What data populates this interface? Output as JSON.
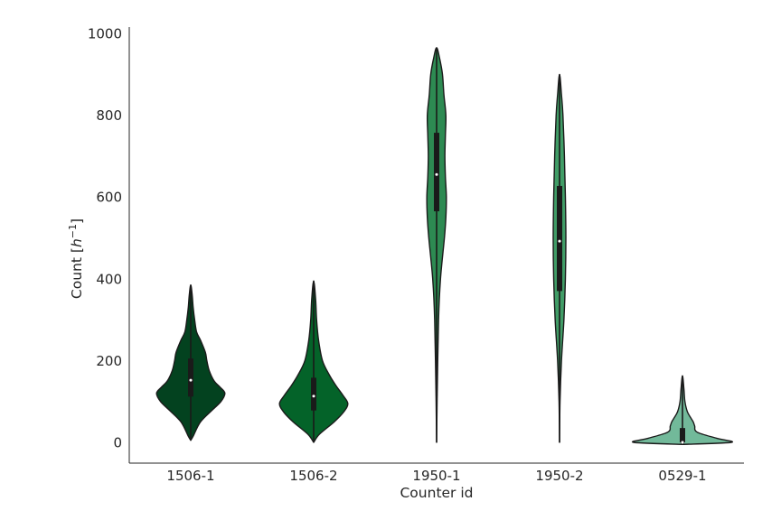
{
  "chart_data": {
    "type": "violin",
    "xlabel": "Counter id",
    "ylabel_main": "Count [",
    "ylabel_math": "h",
    "ylabel_sup": "−1",
    "ylabel_end": "]",
    "ylim": [
      -50,
      1015
    ],
    "yticks": [
      0,
      200,
      400,
      600,
      800,
      1000
    ],
    "categories": [
      "1506-1",
      "1506-2",
      "1950-1",
      "1950-2",
      "0529-1"
    ],
    "series": [
      {
        "color": "#03421f",
        "median": 152,
        "q1": 112,
        "q3": 205,
        "profile": [
          [
            5,
            0
          ],
          [
            15,
            0.05
          ],
          [
            50,
            0.2
          ],
          [
            80,
            0.45
          ],
          [
            100,
            0.62
          ],
          [
            120,
            0.7
          ],
          [
            135,
            0.6
          ],
          [
            150,
            0.48
          ],
          [
            175,
            0.38
          ],
          [
            200,
            0.33
          ],
          [
            220,
            0.3
          ],
          [
            250,
            0.2
          ],
          [
            270,
            0.12
          ],
          [
            300,
            0.08
          ],
          [
            330,
            0.05
          ],
          [
            360,
            0.03
          ],
          [
            385,
            0
          ]
        ]
      },
      {
        "color": "#046329",
        "median": 113,
        "q1": 78,
        "q3": 158,
        "profile": [
          [
            0,
            0
          ],
          [
            20,
            0.12
          ],
          [
            50,
            0.42
          ],
          [
            75,
            0.62
          ],
          [
            95,
            0.7
          ],
          [
            115,
            0.6
          ],
          [
            140,
            0.45
          ],
          [
            165,
            0.32
          ],
          [
            200,
            0.18
          ],
          [
            250,
            0.1
          ],
          [
            300,
            0.06
          ],
          [
            350,
            0.04
          ],
          [
            395,
            0
          ]
        ]
      },
      {
        "color": "#2d8a52",
        "median": 655,
        "q1": 565,
        "q3": 757,
        "profile": [
          [
            0,
            0
          ],
          [
            100,
            0.01
          ],
          [
            300,
            0.04
          ],
          [
            400,
            0.08
          ],
          [
            500,
            0.16
          ],
          [
            550,
            0.19
          ],
          [
            600,
            0.2
          ],
          [
            650,
            0.18
          ],
          [
            700,
            0.17
          ],
          [
            750,
            0.18
          ],
          [
            800,
            0.19
          ],
          [
            850,
            0.15
          ],
          [
            900,
            0.12
          ],
          [
            940,
            0.06
          ],
          [
            965,
            0
          ]
        ]
      },
      {
        "color": "#419d67",
        "median": 492,
        "q1": 370,
        "q3": 627,
        "profile": [
          [
            0,
            0
          ],
          [
            100,
            0.01
          ],
          [
            200,
            0.04
          ],
          [
            300,
            0.09
          ],
          [
            400,
            0.12
          ],
          [
            500,
            0.13
          ],
          [
            600,
            0.12
          ],
          [
            700,
            0.1
          ],
          [
            800,
            0.07
          ],
          [
            850,
            0.04
          ],
          [
            900,
            0
          ]
        ]
      },
      {
        "color": "#72b99a",
        "median": 0,
        "q1": 0,
        "q3": 35,
        "profile": [
          [
            -5,
            0
          ],
          [
            0,
            1.0
          ],
          [
            10,
            0.7
          ],
          [
            25,
            0.3
          ],
          [
            40,
            0.25
          ],
          [
            50,
            0.22
          ],
          [
            60,
            0.17
          ],
          [
            75,
            0.1
          ],
          [
            100,
            0.05
          ],
          [
            130,
            0.03
          ],
          [
            163,
            0
          ]
        ]
      }
    ]
  }
}
